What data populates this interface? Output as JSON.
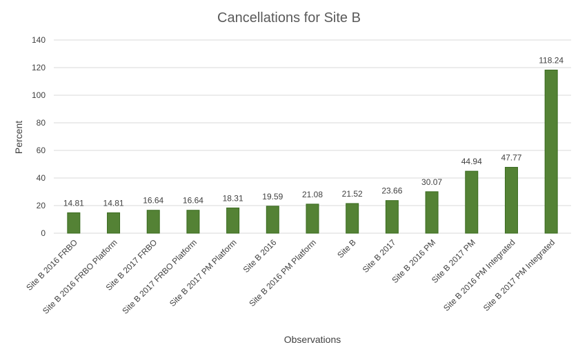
{
  "chart_data": {
    "type": "bar",
    "title": "Cancellations for Site B",
    "xlabel": "Observations",
    "ylabel": "Percent",
    "ylim": [
      0,
      140
    ],
    "yticks": [
      0,
      20,
      40,
      60,
      80,
      100,
      120,
      140
    ],
    "grid": true,
    "bar_color": "#548235",
    "categories": [
      "Site B 2016 FRBO",
      "Site B 2016 FRBO Platform",
      "Site B 2017 FRBO",
      "Site B 2017 FRBO Platform",
      "Site B 2017 PM Platform",
      "Site B 2016",
      "Site B 2016 PM Platform",
      "Site B",
      "Site B 2017",
      "Site B 2016 PM",
      "Site B 2017 PM",
      "Site B 2016 PM Integrated",
      "Site B 2017 PM Integrated"
    ],
    "values": [
      14.81,
      14.81,
      16.64,
      16.64,
      18.31,
      19.59,
      21.08,
      21.52,
      23.66,
      30.07,
      44.94,
      47.77,
      118.24
    ],
    "data_labels": [
      "14.81",
      "14.81",
      "16.64",
      "16.64",
      "18.31",
      "19.59",
      "21.08",
      "21.52",
      "23.66",
      "30.07",
      "44.94",
      "47.77",
      "118.24"
    ]
  }
}
